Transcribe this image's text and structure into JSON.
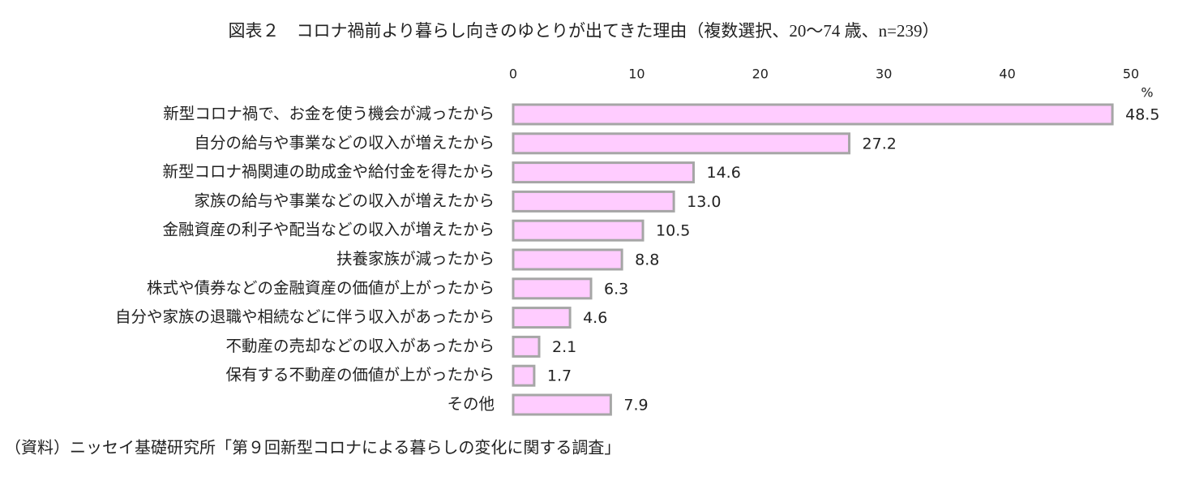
{
  "chart_data": {
    "type": "barh",
    "title": "図表２　コロナ禍前より暮らし向きのゆとりが出てきた理由（複数選択、20～74 歳、n=239）",
    "categories": [
      "新型コロナ禍で、お金を使う機会が減ったから",
      "自分の給与や事業などの収入が増えたから",
      "新型コロナ禍関連の助成金や給付金を得たから",
      "家族の給与や事業などの収入が増えたから",
      "金融資産の利子や配当などの収入が増えたから",
      "扶養家族が減ったから",
      "株式や債券などの金融資産の価値が上がったから",
      "自分や家族の退職や相続などに伴う収入があったから",
      "不動産の売却などの収入があったから",
      "保有する不動産の価値が上がったから",
      "その他"
    ],
    "values": [
      48.5,
      27.2,
      14.6,
      13.0,
      10.5,
      8.8,
      6.3,
      4.6,
      2.1,
      1.7,
      7.9
    ],
    "value_labels": [
      "48.5",
      "27.2",
      "14.6",
      "13.0",
      "10.5",
      "8.8",
      "6.3",
      "4.6",
      "2.1",
      "1.7",
      "7.9"
    ],
    "color": "#ffccff",
    "edge_color": "#a6a6a6",
    "xlim": [
      0,
      50
    ],
    "xticks": [
      0,
      10,
      20,
      30,
      40,
      50
    ],
    "x_unit": "%",
    "grid": false,
    "source": "（資料）ニッセイ基礎研究所「第９回新型コロナによる暮らしの変化に関する調査」"
  }
}
